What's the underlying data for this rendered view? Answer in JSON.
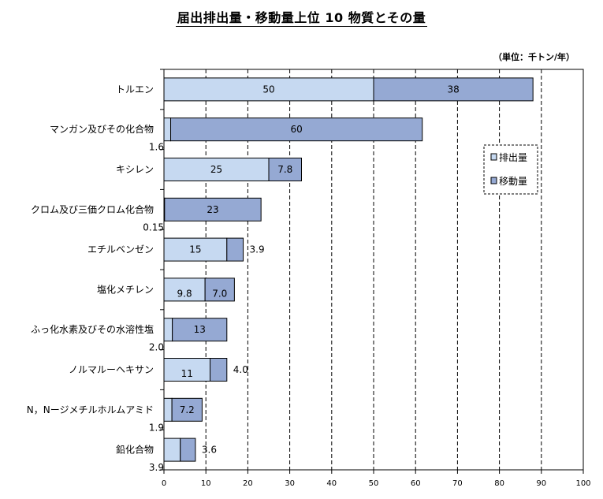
{
  "chart_data": {
    "type": "bar",
    "orientation": "horizontal",
    "stacked": true,
    "title": "届出排出量・移動量上位 10 物質とその量",
    "unit": "（単位：千トン/年）",
    "categories": [
      "トルエン",
      "マンガン及びその化合物",
      "キシレン",
      "クロム及び三価クロム化合物",
      "エチルベンゼン",
      "塩化メチレン",
      "ふっ化水素及びその水溶性塩",
      "ノルマルーヘキサン",
      "N，Nージメチルホルムアミド",
      "鉛化合物"
    ],
    "series": [
      {
        "name": "排出量",
        "values": [
          50,
          1.6,
          25,
          0.15,
          15,
          9.8,
          2.0,
          11,
          1.9,
          3.9
        ],
        "labels": [
          "50",
          "1.6",
          "25",
          "0.15",
          "15",
          "9.8",
          "2.0",
          "11",
          "1.9",
          "3.9"
        ],
        "color": "#c6d9f1"
      },
      {
        "name": "移動量",
        "values": [
          38,
          60,
          7.8,
          23,
          3.9,
          7.0,
          13,
          4.0,
          7.2,
          3.6
        ],
        "labels": [
          "38",
          "60",
          "7.8",
          "23",
          "3.9",
          "7.0",
          "13",
          "4.0",
          "7.2",
          "3.6"
        ],
        "color": "#95a9d3"
      }
    ],
    "xlim": [
      0,
      100
    ],
    "xticks": [
      0,
      10,
      20,
      30,
      40,
      50,
      60,
      70,
      80,
      90,
      100
    ],
    "grid": "vertical-dashed",
    "legend_position": "right"
  }
}
